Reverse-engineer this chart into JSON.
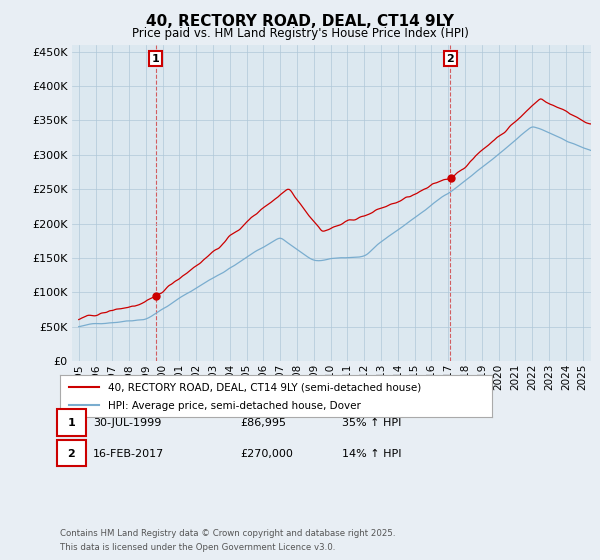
{
  "title": "40, RECTORY ROAD, DEAL, CT14 9LY",
  "subtitle": "Price paid vs. HM Land Registry's House Price Index (HPI)",
  "legend_line1": "40, RECTORY ROAD, DEAL, CT14 9LY (semi-detached house)",
  "legend_line2": "HPI: Average price, semi-detached house, Dover",
  "annotation1_label": "1",
  "annotation1_date": "30-JUL-1999",
  "annotation1_price": "£86,995",
  "annotation1_hpi": "35% ↑ HPI",
  "annotation1_year": 1999.58,
  "annotation1_value": 86995,
  "annotation2_label": "2",
  "annotation2_date": "16-FEB-2017",
  "annotation2_price": "£270,000",
  "annotation2_hpi": "14% ↑ HPI",
  "annotation2_year": 2017.12,
  "annotation2_value": 270000,
  "footer_line1": "Contains HM Land Registry data © Crown copyright and database right 2025.",
  "footer_line2": "This data is licensed under the Open Government Licence v3.0.",
  "line1_color": "#cc0000",
  "line2_color": "#7aadcf",
  "background_color": "#e8eef4",
  "plot_bg_color": "#dce8f0",
  "grid_color": "#b0c8d8",
  "ylim_min": 0,
  "ylim_max": 460000,
  "xlabel": "",
  "ylabel": ""
}
